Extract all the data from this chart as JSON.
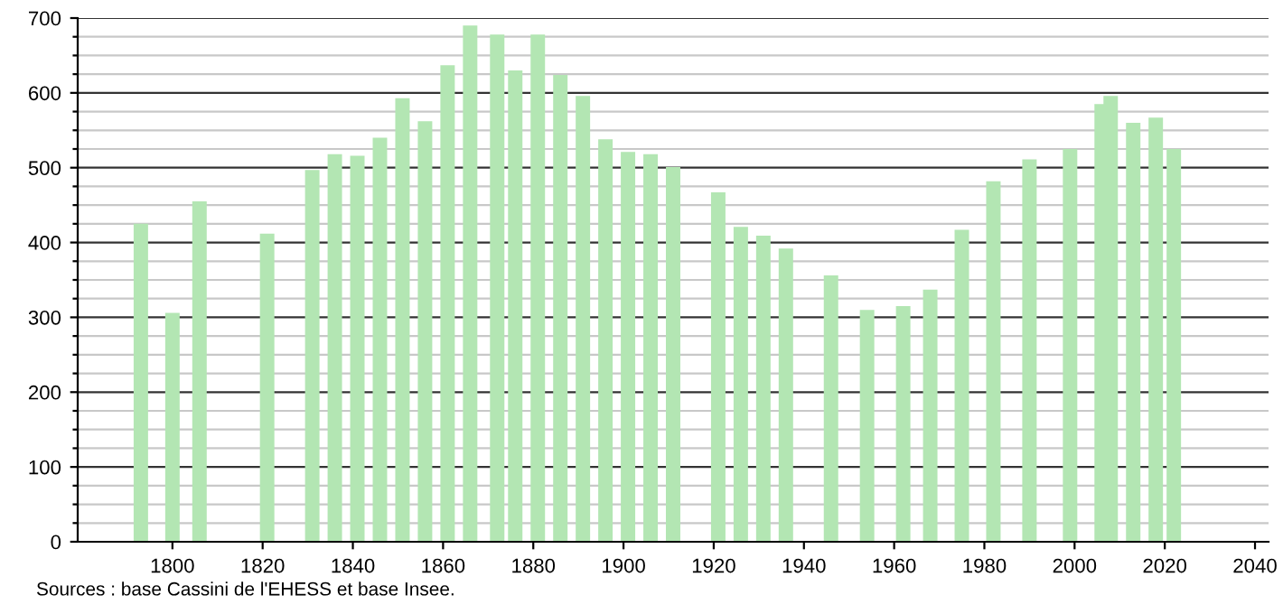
{
  "chart_data": {
    "type": "bar",
    "x": [
      1793,
      1800,
      1806,
      1821,
      1831,
      1836,
      1841,
      1846,
      1851,
      1856,
      1861,
      1866,
      1872,
      1876,
      1881,
      1886,
      1891,
      1896,
      1901,
      1906,
      1911,
      1921,
      1926,
      1931,
      1936,
      1946,
      1954,
      1962,
      1968,
      1975,
      1982,
      1990,
      1999,
      2006,
      2008,
      2013,
      2018,
      2022
    ],
    "values": [
      425,
      306,
      455,
      412,
      497,
      518,
      516,
      540,
      593,
      562,
      637,
      690,
      678,
      630,
      678,
      624,
      596,
      538,
      521,
      518,
      501,
      467,
      421,
      409,
      392,
      356,
      310,
      315,
      337,
      417,
      482,
      511,
      525,
      585,
      596,
      560,
      567,
      525
    ],
    "color": "#b3e6b3",
    "xlim": [
      1779,
      2043
    ],
    "xticks": [
      1800,
      1820,
      1840,
      1860,
      1880,
      1900,
      1920,
      1940,
      1960,
      1980,
      2000,
      2020,
      2040
    ],
    "ylim": [
      0,
      700
    ],
    "yticks": [
      0,
      {
        "value": 25,
        "label": null
      },
      {
        "value": 50,
        "label": null
      },
      {
        "value": 75,
        "label": null
      },
      100,
      {
        "value": 125,
        "label": null
      },
      {
        "value": 150,
        "label": null
      },
      {
        "value": 175,
        "label": null
      },
      200,
      {
        "value": 225,
        "label": null
      },
      {
        "value": 250,
        "label": null
      },
      {
        "value": 275,
        "label": null
      },
      300,
      {
        "value": 325,
        "label": null
      },
      {
        "value": 350,
        "label": null
      },
      {
        "value": 375,
        "label": null
      },
      400,
      {
        "value": 425,
        "label": null
      },
      {
        "value": 450,
        "label": null
      },
      {
        "value": 475,
        "label": null
      },
      500,
      {
        "value": 525,
        "label": null
      },
      {
        "value": 550,
        "label": null
      },
      {
        "value": 575,
        "label": null
      },
      600,
      {
        "value": 625,
        "label": null
      },
      {
        "value": 650,
        "label": null
      },
      {
        "value": 675,
        "label": null
      },
      700
    ],
    "grid": "y",
    "annotations": [
      "Sources : base Cassini de l'EHESS et base Insee."
    ]
  }
}
